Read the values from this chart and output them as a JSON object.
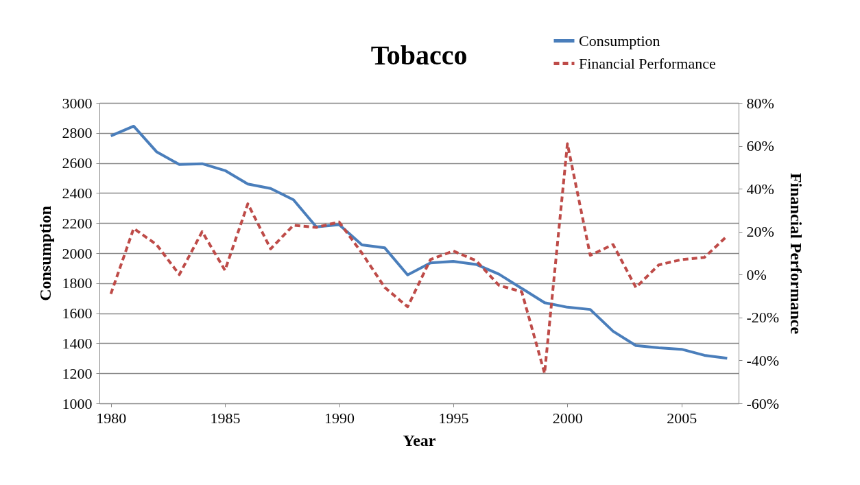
{
  "chart_data": {
    "type": "line",
    "title": "Tobacco",
    "xlabel": "Year",
    "ylabel": "Consumption",
    "y2label": "Financial Performance",
    "x": [
      1980,
      1981,
      1982,
      1983,
      1984,
      1985,
      1986,
      1987,
      1988,
      1989,
      1990,
      1991,
      1992,
      1993,
      1994,
      1995,
      1996,
      1997,
      1998,
      1999,
      2000,
      2001,
      2002,
      2003,
      2004,
      2005,
      2006,
      2007
    ],
    "series": [
      {
        "name": "Consumption",
        "color": "#4a7ebb",
        "line_style": "solid",
        "values": [
          2780,
          2845,
          2675,
          2590,
          2595,
          2550,
          2460,
          2430,
          2355,
          2175,
          2190,
          2055,
          2035,
          1855,
          1935,
          1945,
          1925,
          1860,
          1765,
          1670,
          1640,
          1625,
          1480,
          1385,
          1370,
          1360,
          1320,
          1300
        ]
      },
      {
        "name": "Financial Performance",
        "color": "#be4b48",
        "line_style": "dashed",
        "axis": "y2",
        "values": [
          -9,
          21.5,
          14,
          0,
          20,
          2,
          33,
          12,
          23,
          22,
          24.5,
          10,
          -6,
          -15,
          7,
          11,
          6.5,
          -5,
          -8,
          -46,
          61,
          9,
          14,
          -6,
          4.5,
          7,
          8,
          18
        ]
      }
    ],
    "xlim": [
      1979.5,
      2007.5
    ],
    "xticks": [
      1980,
      1985,
      1990,
      1995,
      2000,
      2005
    ],
    "ylim": [
      1000,
      3000
    ],
    "yticks": [
      1000,
      1200,
      1400,
      1600,
      1800,
      2000,
      2200,
      2400,
      2600,
      2800,
      3000
    ],
    "y2lim": [
      -60,
      80
    ],
    "y2ticks": [
      {
        "value": -60,
        "label": "-60%"
      },
      {
        "value": -40,
        "label": "-40%"
      },
      {
        "value": -20,
        "label": "-20%"
      },
      {
        "value": 0,
        "label": "0%"
      },
      {
        "value": 20,
        "label": "20%"
      },
      {
        "value": 40,
        "label": "40%"
      },
      {
        "value": 60,
        "label": "60%"
      },
      {
        "value": 80,
        "label": "80%"
      }
    ],
    "grid": "y",
    "legend": "top right",
    "marker": "none"
  }
}
